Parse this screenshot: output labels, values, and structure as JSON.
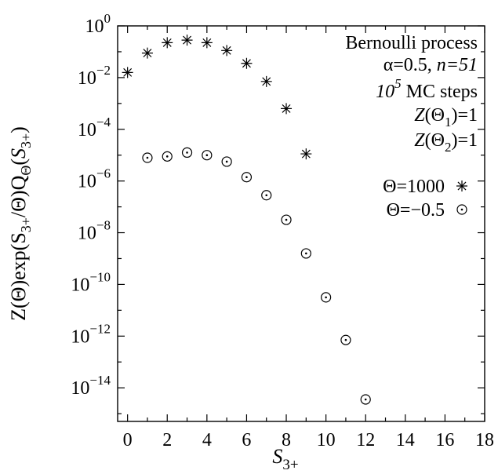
{
  "chart_data": {
    "type": "scatter",
    "x_axis": {
      "label_main": "S",
      "label_sub": "3+",
      "range": [
        -0.5,
        18
      ],
      "ticks": [
        0,
        2,
        4,
        6,
        8,
        10,
        12,
        14,
        16,
        18
      ]
    },
    "y_axis": {
      "scale": "log",
      "label": "Z(Θ)exp(S3+/Θ)QΘ(S3+)",
      "label_parts": [
        {
          "t": "Z(Θ)exp(S",
          "sub": false
        },
        {
          "t": "3+",
          "sub": true
        },
        {
          "t": "/Θ)Q",
          "sub": false
        },
        {
          "t": "Θ",
          "sub": true
        },
        {
          "t": "(",
          "sub": false
        },
        {
          "t": "S",
          "sub": false,
          "italic": true
        },
        {
          "t": "3+",
          "sub": true
        },
        {
          "t": ")",
          "sub": false
        }
      ],
      "range_exponent": [
        -15.3,
        0
      ],
      "ticks": [
        {
          "base": "10",
          "exp": "0",
          "value_exp": 0
        },
        {
          "base": "10",
          "exp": "−2",
          "value_exp": -2
        },
        {
          "base": "10",
          "exp": "−4",
          "value_exp": -4
        },
        {
          "base": "10",
          "exp": "−6",
          "value_exp": -6
        },
        {
          "base": "10",
          "exp": "−8",
          "value_exp": -8
        },
        {
          "base": "10",
          "exp": "−10",
          "value_exp": -10
        },
        {
          "base": "10",
          "exp": "−12",
          "value_exp": -12
        },
        {
          "base": "10",
          "exp": "−14",
          "value_exp": -14
        }
      ]
    },
    "annotations": {
      "line1": "Bernoulli process",
      "line2_alpha": "α=0.5, ",
      "line2_n": "n=51",
      "line3_base": "10",
      "line3_exp": "5",
      "line3_rest": " MC steps",
      "line4_pre": "Z(Θ",
      "line4_sub": "1",
      "line4_post": ")=1",
      "line5_pre": "Z(Θ",
      "line5_sub": "2",
      "line5_post": ")=1"
    },
    "legend_position": "right",
    "series": [
      {
        "name": "Θ=1000",
        "marker": "asterisk",
        "x": [
          0,
          1,
          2,
          3,
          4,
          5,
          6,
          7,
          8,
          9
        ],
        "y": [
          0.0158,
          0.0891,
          0.224,
          0.282,
          0.224,
          0.112,
          0.0355,
          0.00708,
          0.000631,
          1.12e-05
        ]
      },
      {
        "name": "Θ=−0.5",
        "marker": "circle-dot",
        "x": [
          1,
          2,
          3,
          4,
          5,
          6,
          7,
          8,
          9,
          10,
          11,
          12
        ],
        "y": [
          7.94e-06,
          8.91e-06,
          1.26e-05,
          1e-05,
          5.62e-06,
          1.41e-06,
          2.82e-07,
          3.16e-08,
          1.58e-09,
          3.16e-11,
          7.08e-13,
          3.55e-15
        ]
      }
    ]
  }
}
